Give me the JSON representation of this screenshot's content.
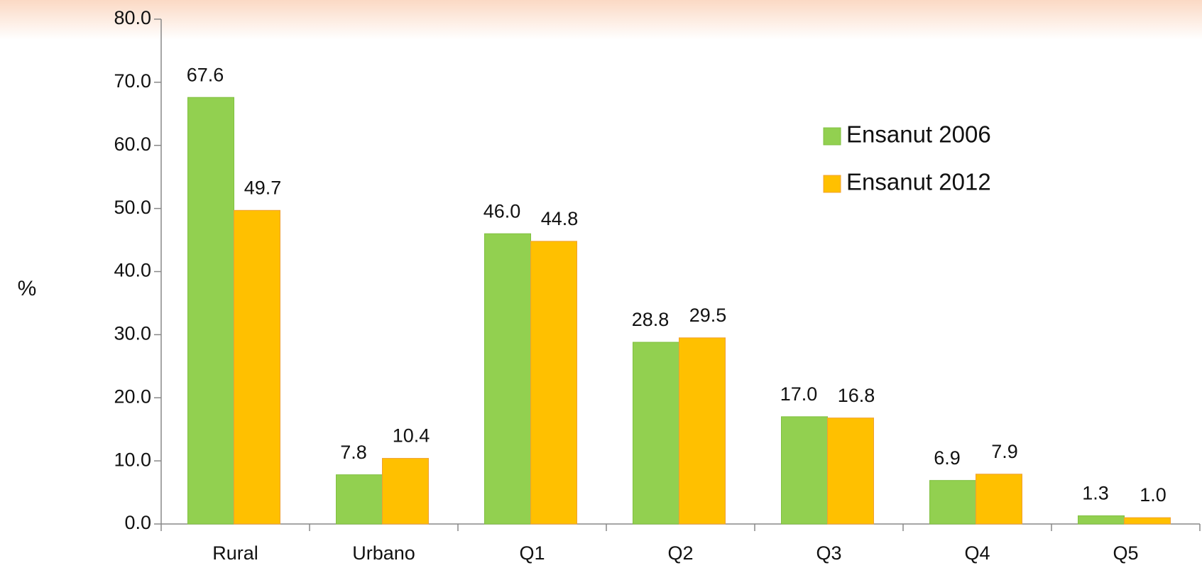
{
  "chart_data": {
    "type": "bar",
    "y_label": "%",
    "categories": [
      "Rural",
      "Urbano",
      "Q1",
      "Q2",
      "Q3",
      "Q4",
      "Q5"
    ],
    "series": [
      {
        "name": "Ensanut 2006",
        "color": "#92d050",
        "values": [
          67.6,
          7.8,
          46.0,
          28.8,
          17.0,
          6.9,
          1.3
        ],
        "value_labels": [
          "67.6",
          "7.8",
          "46.0",
          "28.8",
          "17.0",
          "6.9",
          "1.3"
        ]
      },
      {
        "name": "Ensanut 2012",
        "color": "#ffc000",
        "values": [
          49.7,
          10.4,
          44.8,
          29.5,
          16.8,
          7.9,
          1.0
        ],
        "value_labels": [
          "49.7",
          "10.4",
          "44.8",
          "29.5",
          "16.8",
          "7.9",
          "1.0"
        ]
      }
    ],
    "ylim": [
      0,
      80
    ],
    "yticks": [
      {
        "value": 0,
        "label": "0.0"
      },
      {
        "value": 10,
        "label": "10.0"
      },
      {
        "value": 20,
        "label": "20.0"
      },
      {
        "value": 30,
        "label": "30.0"
      },
      {
        "value": 40,
        "label": "40.0"
      },
      {
        "value": 50,
        "label": "50.0"
      },
      {
        "value": 60,
        "label": "60.0"
      },
      {
        "value": 70,
        "label": "70.0"
      },
      {
        "value": 80,
        "label": "80.0"
      }
    ],
    "legend": "upper right"
  }
}
